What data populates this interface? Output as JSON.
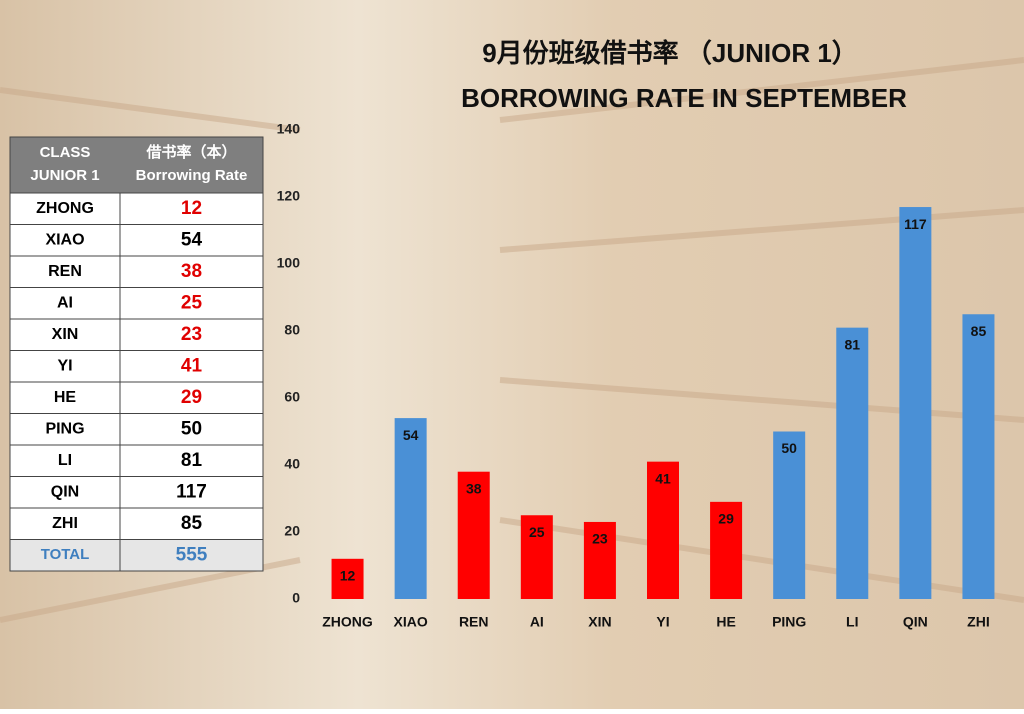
{
  "chart_data": {
    "type": "bar",
    "title": "9月份班级借书率 （JUNIOR 1）",
    "subtitle": "BORROWING RATE IN SEPTEMBER",
    "categories": [
      "ZHONG",
      "XIAO",
      "REN",
      "AI",
      "XIN",
      "YI",
      "HE",
      "PING",
      "LI",
      "QIN",
      "ZHI"
    ],
    "values": [
      12,
      54,
      38,
      25,
      23,
      41,
      29,
      50,
      81,
      117,
      85
    ],
    "colors": [
      "#ff0000",
      "#4a90d6",
      "#ff0000",
      "#ff0000",
      "#ff0000",
      "#ff0000",
      "#ff0000",
      "#4a90d6",
      "#4a90d6",
      "#4a90d6",
      "#4a90d6"
    ],
    "ylim": [
      0,
      140
    ],
    "yticks": [
      0,
      20,
      40,
      60,
      80,
      100,
      120,
      140
    ],
    "grid": false
  },
  "table": {
    "header": [
      [
        "CLASS",
        "JUNIOR 1"
      ],
      [
        "借书率（本）",
        "Borrowing Rate"
      ]
    ],
    "rows": [
      {
        "name": "ZHONG",
        "rate": "12",
        "color": "#e00000"
      },
      {
        "name": "XIAO",
        "rate": "54",
        "color": "#000000"
      },
      {
        "name": "REN",
        "rate": "38",
        "color": "#e00000"
      },
      {
        "name": "AI",
        "rate": "25",
        "color": "#e00000"
      },
      {
        "name": "XIN",
        "rate": "23",
        "color": "#e00000"
      },
      {
        "name": "YI",
        "rate": "41",
        "color": "#e00000"
      },
      {
        "name": "HE",
        "rate": "29",
        "color": "#e00000"
      },
      {
        "name": "PING",
        "rate": "50",
        "color": "#000000"
      },
      {
        "name": "LI",
        "rate": "81",
        "color": "#000000"
      },
      {
        "name": "QIN",
        "rate": "117",
        "color": "#000000"
      },
      {
        "name": "ZHI",
        "rate": "85",
        "color": "#000000"
      }
    ],
    "total": {
      "name": "TOTAL",
      "rate": "555",
      "color": "#3f7fbf"
    }
  }
}
